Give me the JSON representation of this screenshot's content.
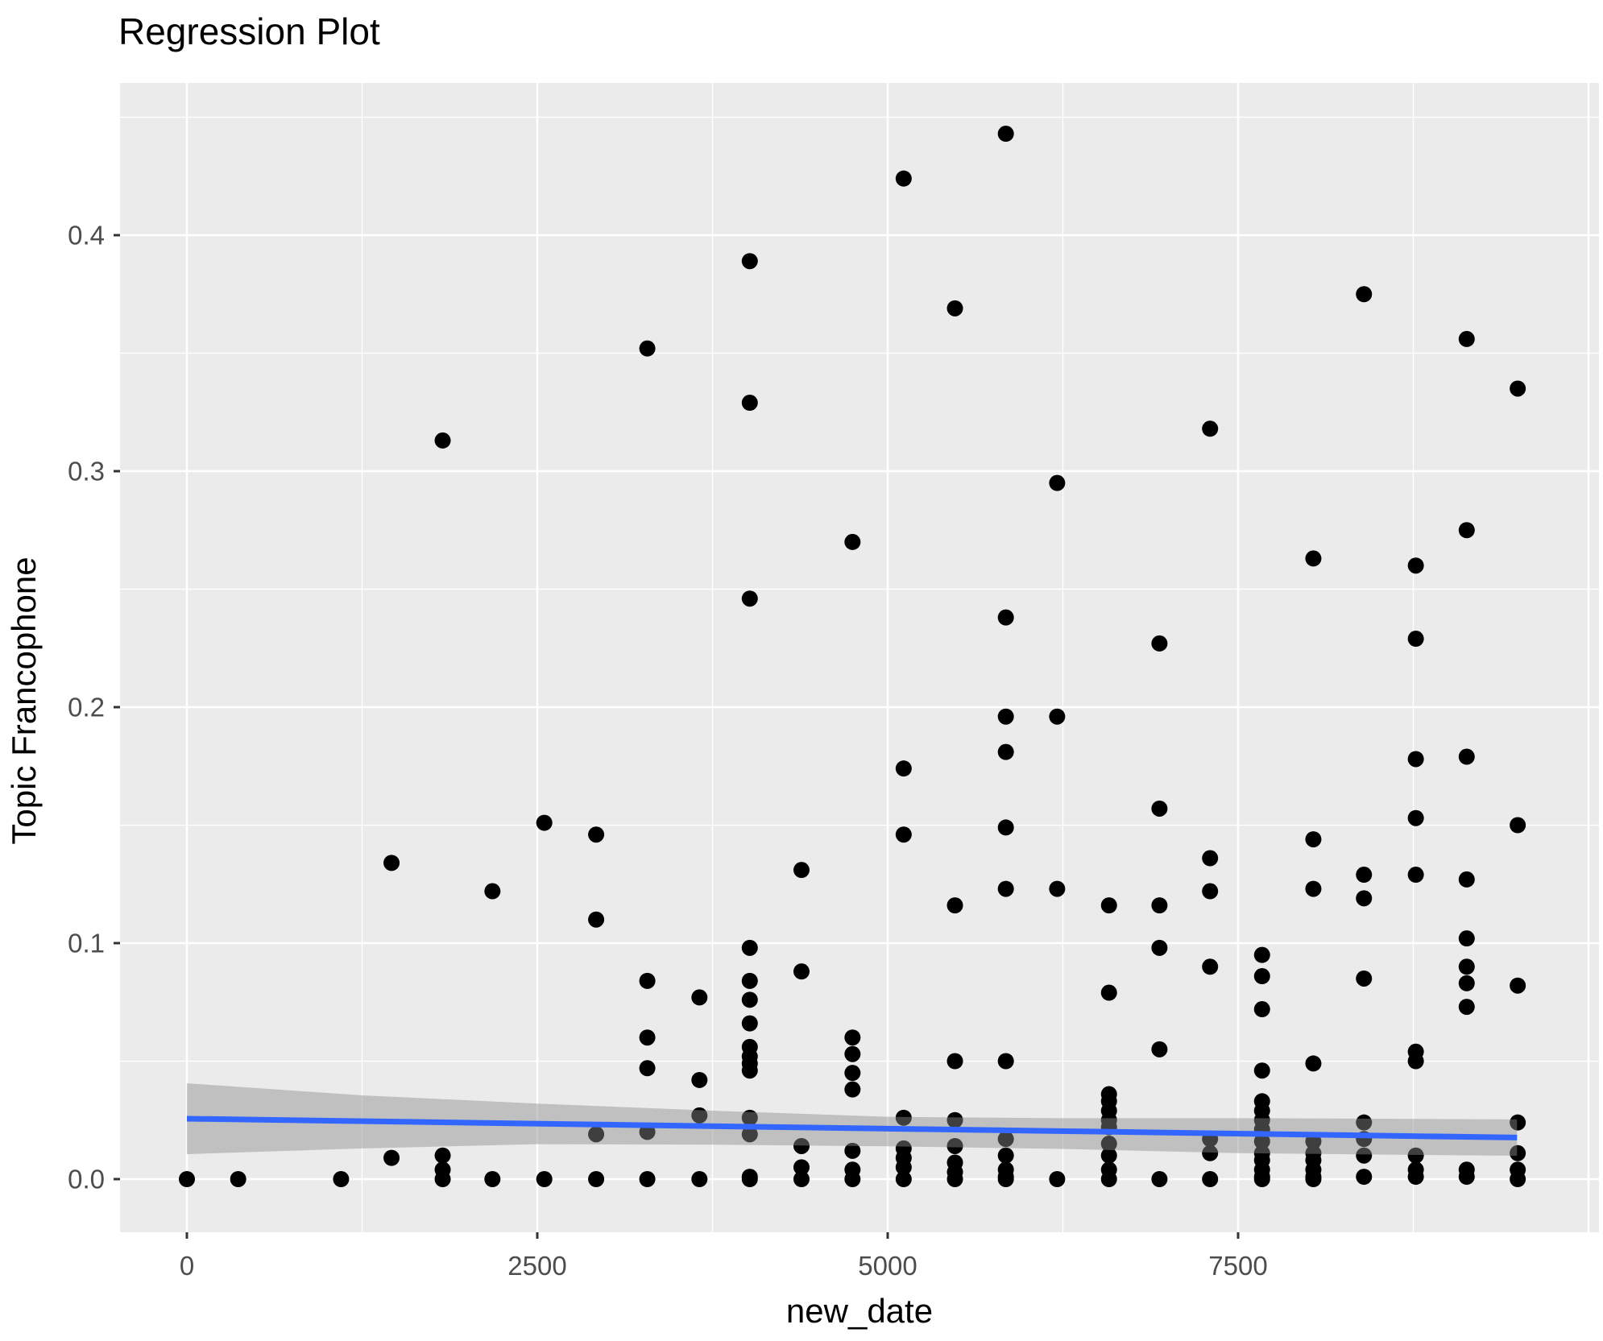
{
  "chart_data": {
    "type": "scatter",
    "title": "Regression Plot",
    "xlabel": "new_date",
    "ylabel": "Topic Francophone",
    "xlim": [
      -477,
      10075
    ],
    "ylim": [
      -0.022,
      0.465
    ],
    "grid": true,
    "legend": "none",
    "x_ticks": [
      {
        "label": "0",
        "value": 0
      },
      {
        "label": "2500",
        "value": 2500
      },
      {
        "label": "5000",
        "value": 5000
      },
      {
        "label": "7500",
        "value": 7500
      }
    ],
    "x_grid_major": [
      0,
      2500,
      5000,
      7500,
      10000
    ],
    "x_grid_minor": [
      1250,
      3750,
      6250,
      8750
    ],
    "y_ticks": [
      {
        "label": "0.0",
        "value": 0.0
      },
      {
        "label": "0.1",
        "value": 0.1
      },
      {
        "label": "0.2",
        "value": 0.2
      },
      {
        "label": "0.3",
        "value": 0.3
      },
      {
        "label": "0.4",
        "value": 0.4
      }
    ],
    "y_grid_minor": [
      0.05,
      0.15,
      0.25,
      0.35,
      0.45
    ],
    "points": [
      [
        0,
        0
      ],
      [
        366,
        0
      ],
      [
        1100,
        0
      ],
      [
        1460,
        0.134
      ],
      [
        1460,
        0.009
      ],
      [
        1825,
        0.313
      ],
      [
        1825,
        0.01
      ],
      [
        1825,
        0.004
      ],
      [
        1825,
        0
      ],
      [
        2180,
        0.122
      ],
      [
        2180,
        0
      ],
      [
        2550,
        0.151
      ],
      [
        2550,
        0
      ],
      [
        2920,
        0.146
      ],
      [
        2920,
        0.11
      ],
      [
        2920,
        0.019
      ],
      [
        2920,
        0
      ],
      [
        3285,
        0.352
      ],
      [
        3285,
        0.084
      ],
      [
        3285,
        0.06
      ],
      [
        3285,
        0.047
      ],
      [
        3285,
        0.02
      ],
      [
        3285,
        0
      ],
      [
        3657,
        0.077
      ],
      [
        3657,
        0.042
      ],
      [
        3657,
        0.027
      ],
      [
        3657,
        0
      ],
      [
        4016,
        0.389
      ],
      [
        4016,
        0.329
      ],
      [
        4016,
        0.246
      ],
      [
        4016,
        0.098
      ],
      [
        4016,
        0.084
      ],
      [
        4016,
        0.076
      ],
      [
        4016,
        0.066
      ],
      [
        4016,
        0.056
      ],
      [
        4016,
        0.052
      ],
      [
        4016,
        0.049
      ],
      [
        4016,
        0.046
      ],
      [
        4016,
        0.026
      ],
      [
        4016,
        0.019
      ],
      [
        4016,
        0.001
      ],
      [
        4016,
        0
      ],
      [
        4385,
        0.131
      ],
      [
        4385,
        0.088
      ],
      [
        4385,
        0.014
      ],
      [
        4385,
        0.005
      ],
      [
        4385,
        0
      ],
      [
        4749,
        0.27
      ],
      [
        4749,
        0.06
      ],
      [
        4749,
        0.053
      ],
      [
        4749,
        0.045
      ],
      [
        4749,
        0.038
      ],
      [
        4749,
        0.012
      ],
      [
        4749,
        0.004
      ],
      [
        4749,
        0
      ],
      [
        5114,
        0.424
      ],
      [
        5114,
        0.174
      ],
      [
        5114,
        0.146
      ],
      [
        5114,
        0.026
      ],
      [
        5114,
        0.013
      ],
      [
        5114,
        0.009
      ],
      [
        5114,
        0.005
      ],
      [
        5114,
        0
      ],
      [
        5480,
        0.369
      ],
      [
        5480,
        0.116
      ],
      [
        5480,
        0.05
      ],
      [
        5480,
        0.025
      ],
      [
        5480,
        0.014
      ],
      [
        5480,
        0.007
      ],
      [
        5480,
        0.003
      ],
      [
        5480,
        0
      ],
      [
        5843,
        0.443
      ],
      [
        5843,
        0.238
      ],
      [
        5843,
        0.196
      ],
      [
        5843,
        0.181
      ],
      [
        5843,
        0.149
      ],
      [
        5843,
        0.123
      ],
      [
        5843,
        0.05
      ],
      [
        5843,
        0.017
      ],
      [
        5843,
        0.01
      ],
      [
        5843,
        0.004
      ],
      [
        5843,
        0.001
      ],
      [
        5843,
        0
      ],
      [
        6209,
        0.295
      ],
      [
        6209,
        0.196
      ],
      [
        6209,
        0.123
      ],
      [
        6209,
        0
      ],
      [
        6579,
        0.116
      ],
      [
        6579,
        0.079
      ],
      [
        6579,
        0.036
      ],
      [
        6579,
        0.033
      ],
      [
        6579,
        0.029
      ],
      [
        6579,
        0.025
      ],
      [
        6579,
        0.022
      ],
      [
        6579,
        0.015
      ],
      [
        6579,
        0.01
      ],
      [
        6579,
        0.004
      ],
      [
        6579,
        0
      ],
      [
        6939,
        0.227
      ],
      [
        6939,
        0.157
      ],
      [
        6939,
        0.116
      ],
      [
        6939,
        0.098
      ],
      [
        6939,
        0.055
      ],
      [
        6939,
        0
      ],
      [
        7300,
        0.318
      ],
      [
        7300,
        0.136
      ],
      [
        7300,
        0.122
      ],
      [
        7300,
        0.09
      ],
      [
        7300,
        0.017
      ],
      [
        7300,
        0.011
      ],
      [
        7300,
        0
      ],
      [
        7671,
        0.095
      ],
      [
        7671,
        0.086
      ],
      [
        7671,
        0.072
      ],
      [
        7671,
        0.046
      ],
      [
        7671,
        0.033
      ],
      [
        7671,
        0.029
      ],
      [
        7671,
        0.025
      ],
      [
        7671,
        0.021
      ],
      [
        7671,
        0.016
      ],
      [
        7671,
        0.011
      ],
      [
        7671,
        0.008
      ],
      [
        7671,
        0.004
      ],
      [
        7671,
        0.001
      ],
      [
        7671,
        0
      ],
      [
        8037,
        0.263
      ],
      [
        8037,
        0.144
      ],
      [
        8037,
        0.123
      ],
      [
        8037,
        0.049
      ],
      [
        8037,
        0.016
      ],
      [
        8037,
        0.011
      ],
      [
        8037,
        0.008
      ],
      [
        8037,
        0.004
      ],
      [
        8037,
        0.001
      ],
      [
        8037,
        0
      ],
      [
        8398,
        0.375
      ],
      [
        8398,
        0.129
      ],
      [
        8398,
        0.119
      ],
      [
        8398,
        0.085
      ],
      [
        8398,
        0.024
      ],
      [
        8398,
        0.017
      ],
      [
        8398,
        0.01
      ],
      [
        8398,
        0.001
      ],
      [
        8768,
        0.26
      ],
      [
        8768,
        0.229
      ],
      [
        8768,
        0.178
      ],
      [
        8768,
        0.153
      ],
      [
        8768,
        0.129
      ],
      [
        8768,
        0.054
      ],
      [
        8768,
        0.05
      ],
      [
        8768,
        0.01
      ],
      [
        8768,
        0.004
      ],
      [
        8768,
        0.001
      ],
      [
        9131,
        0.356
      ],
      [
        9131,
        0.275
      ],
      [
        9131,
        0.179
      ],
      [
        9131,
        0.127
      ],
      [
        9131,
        0.102
      ],
      [
        9131,
        0.09
      ],
      [
        9131,
        0.083
      ],
      [
        9131,
        0.073
      ],
      [
        9131,
        0.004
      ],
      [
        9131,
        0.001
      ],
      [
        9495,
        0.335
      ],
      [
        9495,
        0.15
      ],
      [
        9495,
        0.082
      ],
      [
        9495,
        0.024
      ],
      [
        9495,
        0.011
      ],
      [
        9495,
        0.004
      ],
      [
        9495,
        0
      ]
    ],
    "regression_line": {
      "x": [
        0,
        9490
      ],
      "y": [
        0.0256,
        0.0176
      ],
      "color": "#3366FF",
      "width": 7
    },
    "confidence_band": {
      "x": [
        0,
        1250,
        2500,
        3750,
        5000,
        6250,
        7500,
        8500,
        9490
      ],
      "upper": [
        0.0406,
        0.0355,
        0.032,
        0.029,
        0.0264,
        0.0258,
        0.0258,
        0.0256,
        0.0253
      ],
      "lower": [
        0.0106,
        0.013,
        0.0148,
        0.0146,
        0.0139,
        0.0128,
        0.011,
        0.0104,
        0.0099
      ],
      "color": "#8C8C8C",
      "opacity": 0.45
    },
    "point_style": {
      "color": "#000000",
      "radius": 10
    },
    "colors": {
      "panel_background": "#EBEBEB",
      "grid": "#FFFFFF",
      "tick_text": "#4D4D4D",
      "axis_title": "#000000",
      "title": "#000000",
      "outer_background": "#FFFFFF"
    }
  }
}
